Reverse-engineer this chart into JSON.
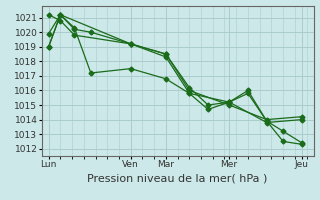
{
  "title": "",
  "xlabel": "Pression niveau de la mer( hPa )",
  "ylabel": "",
  "bg_color": "#cce8e8",
  "grid_color": "#aacccc",
  "line_color": "#1a6b1a",
  "ylim": [
    1011.5,
    1021.8
  ],
  "yticks": [
    1012,
    1013,
    1014,
    1015,
    1016,
    1017,
    1018,
    1019,
    1020,
    1021
  ],
  "xtick_labels": [
    "Lun",
    "Ven",
    "Mar",
    "Mer",
    "Jeu"
  ],
  "xtick_positions": [
    0,
    35,
    50,
    77,
    108
  ],
  "xlim": [
    -3,
    113
  ],
  "lines": [
    {
      "x": [
        0,
        5,
        11,
        18,
        35,
        50,
        60,
        77,
        93,
        108
      ],
      "y": [
        1019.0,
        1021.2,
        1020.2,
        1020.0,
        1019.2,
        1018.5,
        1016.0,
        1015.0,
        1014.0,
        1014.2
      ]
    },
    {
      "x": [
        0,
        5,
        11,
        35,
        50,
        60,
        77,
        93,
        108
      ],
      "y": [
        1021.2,
        1020.8,
        1019.8,
        1019.2,
        1018.3,
        1015.8,
        1015.2,
        1013.8,
        1014.0
      ]
    },
    {
      "x": [
        0,
        5,
        11,
        18,
        35,
        50,
        60,
        68,
        77,
        85,
        93,
        100,
        108
      ],
      "y": [
        1019.0,
        1021.2,
        1020.3,
        1017.2,
        1017.5,
        1016.8,
        1015.8,
        1014.7,
        1015.2,
        1015.8,
        1013.9,
        1013.2,
        1012.4
      ]
    },
    {
      "x": [
        0,
        5,
        35,
        50,
        60,
        68,
        77,
        85,
        93,
        100,
        108
      ],
      "y": [
        1019.9,
        1021.2,
        1019.2,
        1018.5,
        1016.2,
        1015.0,
        1015.2,
        1016.0,
        1013.9,
        1012.5,
        1012.3
      ]
    }
  ],
  "tick_fontsize": 6.5,
  "xlabel_fontsize": 8
}
